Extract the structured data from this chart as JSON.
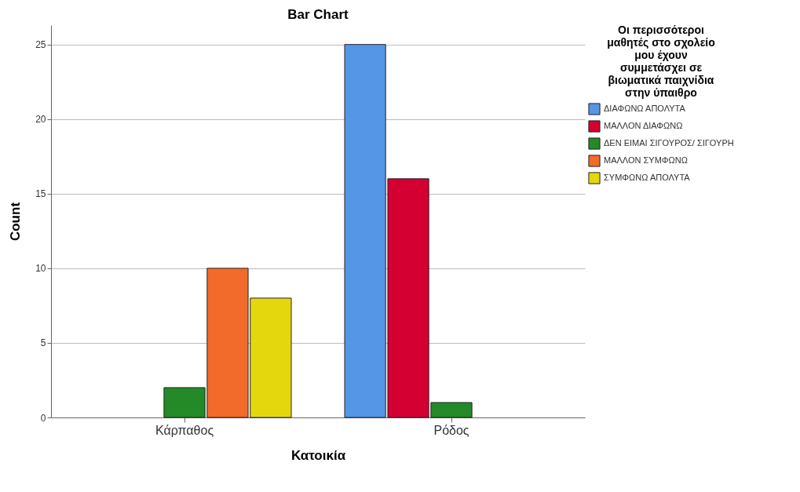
{
  "chart_data": {
    "type": "bar",
    "title": "Bar Chart",
    "xlabel": "Κατοικία",
    "ylabel": "Count",
    "legend_title": "Οι περισσότεροι μαθητές στο σχολείο μου έχουν συμμετάσχει σε βιωματικά παιχνίδια στην ύπαιθρο",
    "categories": [
      "Κάρπαθος",
      "Ρόδος"
    ],
    "series": [
      {
        "name": "ΔΙΑΦΩΝΩ ΑΠΟΛΥΤΑ",
        "color": "#5596e6",
        "values": [
          null,
          25
        ]
      },
      {
        "name": "ΜΑΛΛΟΝ ΔΙΑΦΩΝΩ",
        "color": "#d50032",
        "values": [
          null,
          16
        ]
      },
      {
        "name": "ΔΕΝ ΕΙΜΑΙ ΣΙΓΟΥΡΟΣ/ ΣΙΓΟΥΡΗ",
        "color": "#238a27",
        "values": [
          2,
          1
        ]
      },
      {
        "name": "ΜΑΛΛΟΝ ΣΥΜΦΩΝΩ",
        "color": "#f26b2a",
        "values": [
          10,
          null
        ]
      },
      {
        "name": "ΣΥΜΦΩΝΩ ΑΠΟΛΥΤΑ",
        "color": "#e5d70e",
        "values": [
          8,
          null
        ]
      }
    ],
    "ylim": [
      0,
      26.3
    ],
    "yticks": [
      0,
      5,
      10,
      15,
      20,
      25
    ],
    "grid": "y",
    "legend": "right"
  }
}
